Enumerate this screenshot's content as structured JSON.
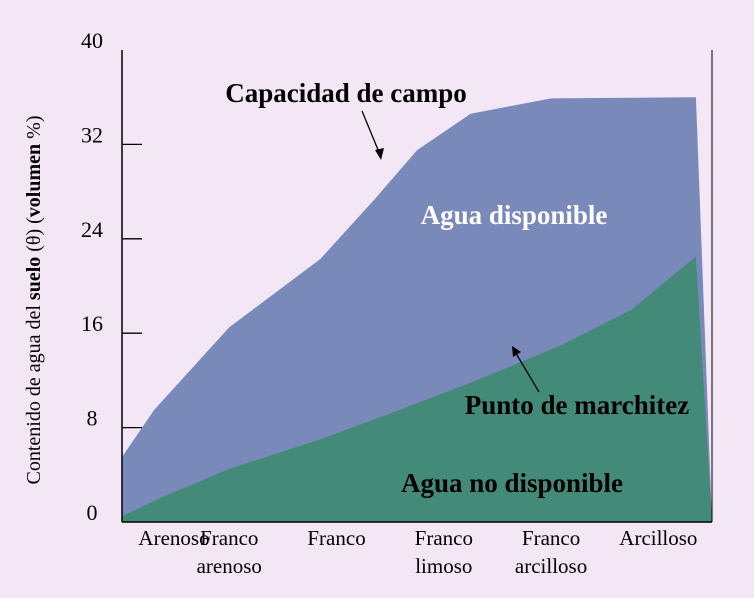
{
  "chart_data": {
    "type": "area",
    "categories": [
      "Arenoso",
      "Franco arenoso",
      "Franco",
      "Franco limoso",
      "Franco arcilloso",
      "Arcilloso"
    ],
    "category_lines": [
      [
        "Arenoso"
      ],
      [
        "Franco",
        "arenoso"
      ],
      [
        "Franco"
      ],
      [
        "Franco",
        "limoso"
      ],
      [
        "Franco",
        "arcilloso"
      ],
      [
        "Arcilloso"
      ]
    ],
    "ylim": [
      0,
      40
    ],
    "yticks": [
      0,
      8,
      16,
      24,
      32,
      40
    ],
    "ylabel_parts": [
      "Contenido de agua del ",
      "suelo",
      " (θ) (",
      "volumen",
      " %)"
    ],
    "series": [
      {
        "name": "Capacidad de campo",
        "x": [
          0,
          0.3,
          1.0,
          1.85,
          2.35,
          2.75,
          3.25,
          4.0,
          5.35
        ],
        "values": [
          5.5,
          9.5,
          16.5,
          22.3,
          27.3,
          31.5,
          34.6,
          35.9,
          36.0
        ]
      },
      {
        "name": "Punto de marchitez",
        "x": [
          0,
          0.4,
          1.0,
          1.85,
          2.5,
          3.25,
          4.1,
          4.75,
          5.35
        ],
        "values": [
          0.5,
          2.2,
          4.5,
          7.0,
          9.2,
          11.8,
          15.0,
          18.0,
          22.5
        ]
      }
    ],
    "colors": {
      "available": "#7889ba",
      "unavailable": "#448a78",
      "background": "#f3e6f5"
    },
    "annotations": {
      "field_capacity": "Capacidad de campo",
      "available_water": "Agua disponible",
      "wilting_point": "Punto de marchitez",
      "unavailable_water": "Agua no disponible"
    }
  }
}
